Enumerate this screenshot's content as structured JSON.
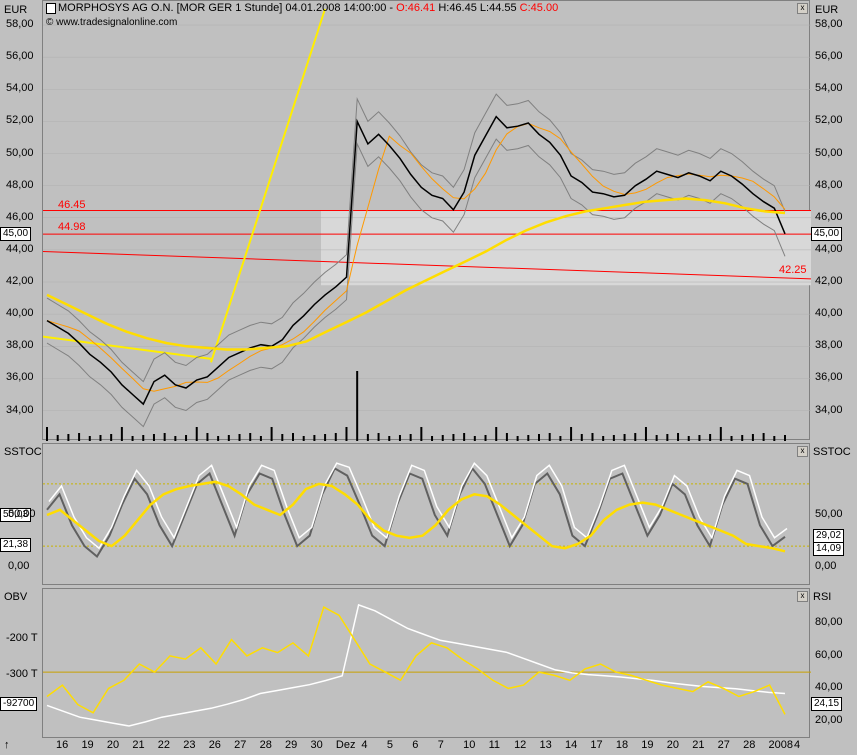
{
  "header": {
    "title": "MORPHOSYS AG O.N. [MOR GER  1 Stunde] 04.01.2008 14:00:00 - ",
    "open": "O:46.41",
    "high": "H:46.45",
    "low": "L:44.55",
    "close": "C:45.00",
    "source": "© www.tradesignalonline.com",
    "currency_left": "EUR",
    "currency_right": "EUR"
  },
  "price_levels": {
    "high_line": "46.45",
    "mid_line": "44.98",
    "low_line": "42.25",
    "last_tag": "45,00"
  },
  "indicators": {
    "sstoc": "SSTOC",
    "obv": "OBV",
    "rsi": "RSI"
  },
  "sstoc_tags": {
    "v1": "50,03",
    "v2": "21,38",
    "r1": "29,02",
    "r2": "14,09"
  },
  "obv_tags": {
    "left": "-92700",
    "right": "24,15"
  },
  "colors": {
    "price": "#000000",
    "ma": "#ffdd00",
    "band": "#808080",
    "ema": "#ff9900",
    "red": "#ff0000"
  },
  "chart_data": [
    {
      "type": "line",
      "title": "MORPHOSYS AG O.N. [MOR GER  1 Stunde]",
      "ylabel": "EUR",
      "ylim": [
        32.6,
        59
      ],
      "y_ticks": [
        "58,00",
        "56,00",
        "54,00",
        "52,00",
        "50,00",
        "48,00",
        "46,00",
        "44,00",
        "42,00",
        "40,00",
        "38,00",
        "36,00",
        "34,00"
      ],
      "x_ticks": [
        "16",
        "19",
        "20",
        "21",
        "22",
        "23",
        "26",
        "27",
        "28",
        "29",
        "30",
        "Dez",
        "4",
        "5",
        "6",
        "7",
        "10",
        "11",
        "12",
        "13",
        "14",
        "17",
        "18",
        "19",
        "20",
        "21",
        "27",
        "28",
        "2008",
        "4"
      ],
      "series": [
        {
          "values": [
            39.6,
            39.2,
            38.8,
            38.2,
            37.5,
            37.0,
            36.4,
            35.6,
            35.0,
            34.4,
            35.8,
            36.2,
            35.6,
            35.4,
            35.9,
            36.1,
            36.7,
            37.3,
            37.6,
            37.9,
            38.1,
            38.0,
            38.4,
            39.3,
            39.9,
            40.6,
            41.2,
            41.7,
            42.3,
            52.0,
            50.6,
            51.2,
            50.5,
            49.7,
            48.7,
            47.9,
            47.4,
            47.2,
            46.5,
            47.6,
            49.9,
            51.1,
            52.3,
            51.6,
            51.7,
            51.9,
            51.2,
            50.7,
            49.9,
            48.6,
            48.2,
            47.6,
            47.5,
            47.3,
            47.4,
            48.0,
            48.4,
            48.9,
            48.7,
            48.5,
            48.8,
            48.6,
            48.3,
            48.9,
            48.6,
            48.1,
            47.5,
            47.0,
            46.6,
            45.0
          ]
        },
        {
          "values": [
            41.2,
            40.6,
            40.0,
            39.4,
            38.9,
            38.5,
            38.2,
            38.0,
            37.9,
            37.8,
            37.8,
            37.9,
            38.0,
            38.3,
            38.9,
            39.5,
            40.1,
            40.8,
            41.5,
            42.1,
            42.7,
            43.3,
            43.9,
            44.6,
            45.2,
            45.7,
            46.1,
            46.4,
            46.6,
            46.8,
            47.0,
            47.1,
            47.2,
            47.1,
            46.9,
            46.6,
            46.4,
            46.3
          ]
        }
      ]
    },
    {
      "type": "line",
      "title": "SSTOC",
      "ylim": [
        -5,
        105
      ],
      "y_ticks": [
        "50,00",
        "0,00"
      ],
      "reference_lines": [
        20,
        80
      ],
      "series": [
        {
          "values": [
            55,
            70,
            40,
            20,
            10,
            30,
            60,
            85,
            70,
            40,
            20,
            50,
            80,
            90,
            60,
            30,
            70,
            90,
            85,
            50,
            20,
            30,
            70,
            95,
            88,
            60,
            30,
            20,
            60,
            90,
            85,
            50,
            30,
            70,
            95,
            80,
            50,
            20,
            40,
            80,
            90,
            70,
            30,
            20,
            50,
            85,
            90,
            60,
            30,
            50,
            80,
            70,
            40,
            20,
            60,
            85,
            80,
            40,
            20,
            29
          ]
        },
        {
          "values": [
            50,
            55,
            45,
            35,
            25,
            20,
            30,
            45,
            60,
            70,
            75,
            78,
            80,
            82,
            78,
            70,
            60,
            55,
            50,
            60,
            75,
            80,
            78,
            70,
            60,
            45,
            35,
            30,
            28,
            30,
            40,
            55,
            65,
            70,
            68,
            60,
            50,
            40,
            30,
            20,
            18,
            22,
            30,
            45,
            55,
            60,
            62,
            60,
            55,
            50,
            45,
            40,
            35,
            30,
            22,
            20,
            18,
            15
          ]
        }
      ]
    },
    {
      "type": "line",
      "title": "OBV / RSI",
      "y_ticks_left": [
        "-200 T",
        "-300 T"
      ],
      "y_ticks_right": [
        "80,00",
        "60,00",
        "40,00",
        "20,00"
      ],
      "reference_lines": [
        50
      ],
      "series": [
        {
          "name": "OBV",
          "values": [
            -320,
            -330,
            -340,
            -345,
            -350,
            -355,
            -348,
            -340,
            -335,
            -330,
            -325,
            -318,
            -310,
            -300,
            -295,
            -290,
            -285,
            -278,
            -270,
            -150,
            -160,
            -175,
            -190,
            -200,
            -210,
            -215,
            -220,
            -225,
            -230,
            -240,
            -250,
            -260,
            -265,
            -268,
            -270,
            -272,
            -275,
            -278,
            -282,
            -285,
            -288,
            -290,
            -292,
            -295,
            -298,
            -300
          ]
        },
        {
          "name": "RSI",
          "values": [
            35,
            42,
            30,
            25,
            40,
            45,
            55,
            50,
            60,
            58,
            65,
            55,
            70,
            60,
            65,
            62,
            68,
            60,
            90,
            85,
            70,
            55,
            50,
            45,
            60,
            68,
            65,
            58,
            52,
            45,
            40,
            42,
            50,
            48,
            45,
            52,
            55,
            50,
            48,
            45,
            42,
            40,
            38,
            44,
            40,
            35,
            38,
            42,
            24
          ]
        }
      ]
    }
  ]
}
